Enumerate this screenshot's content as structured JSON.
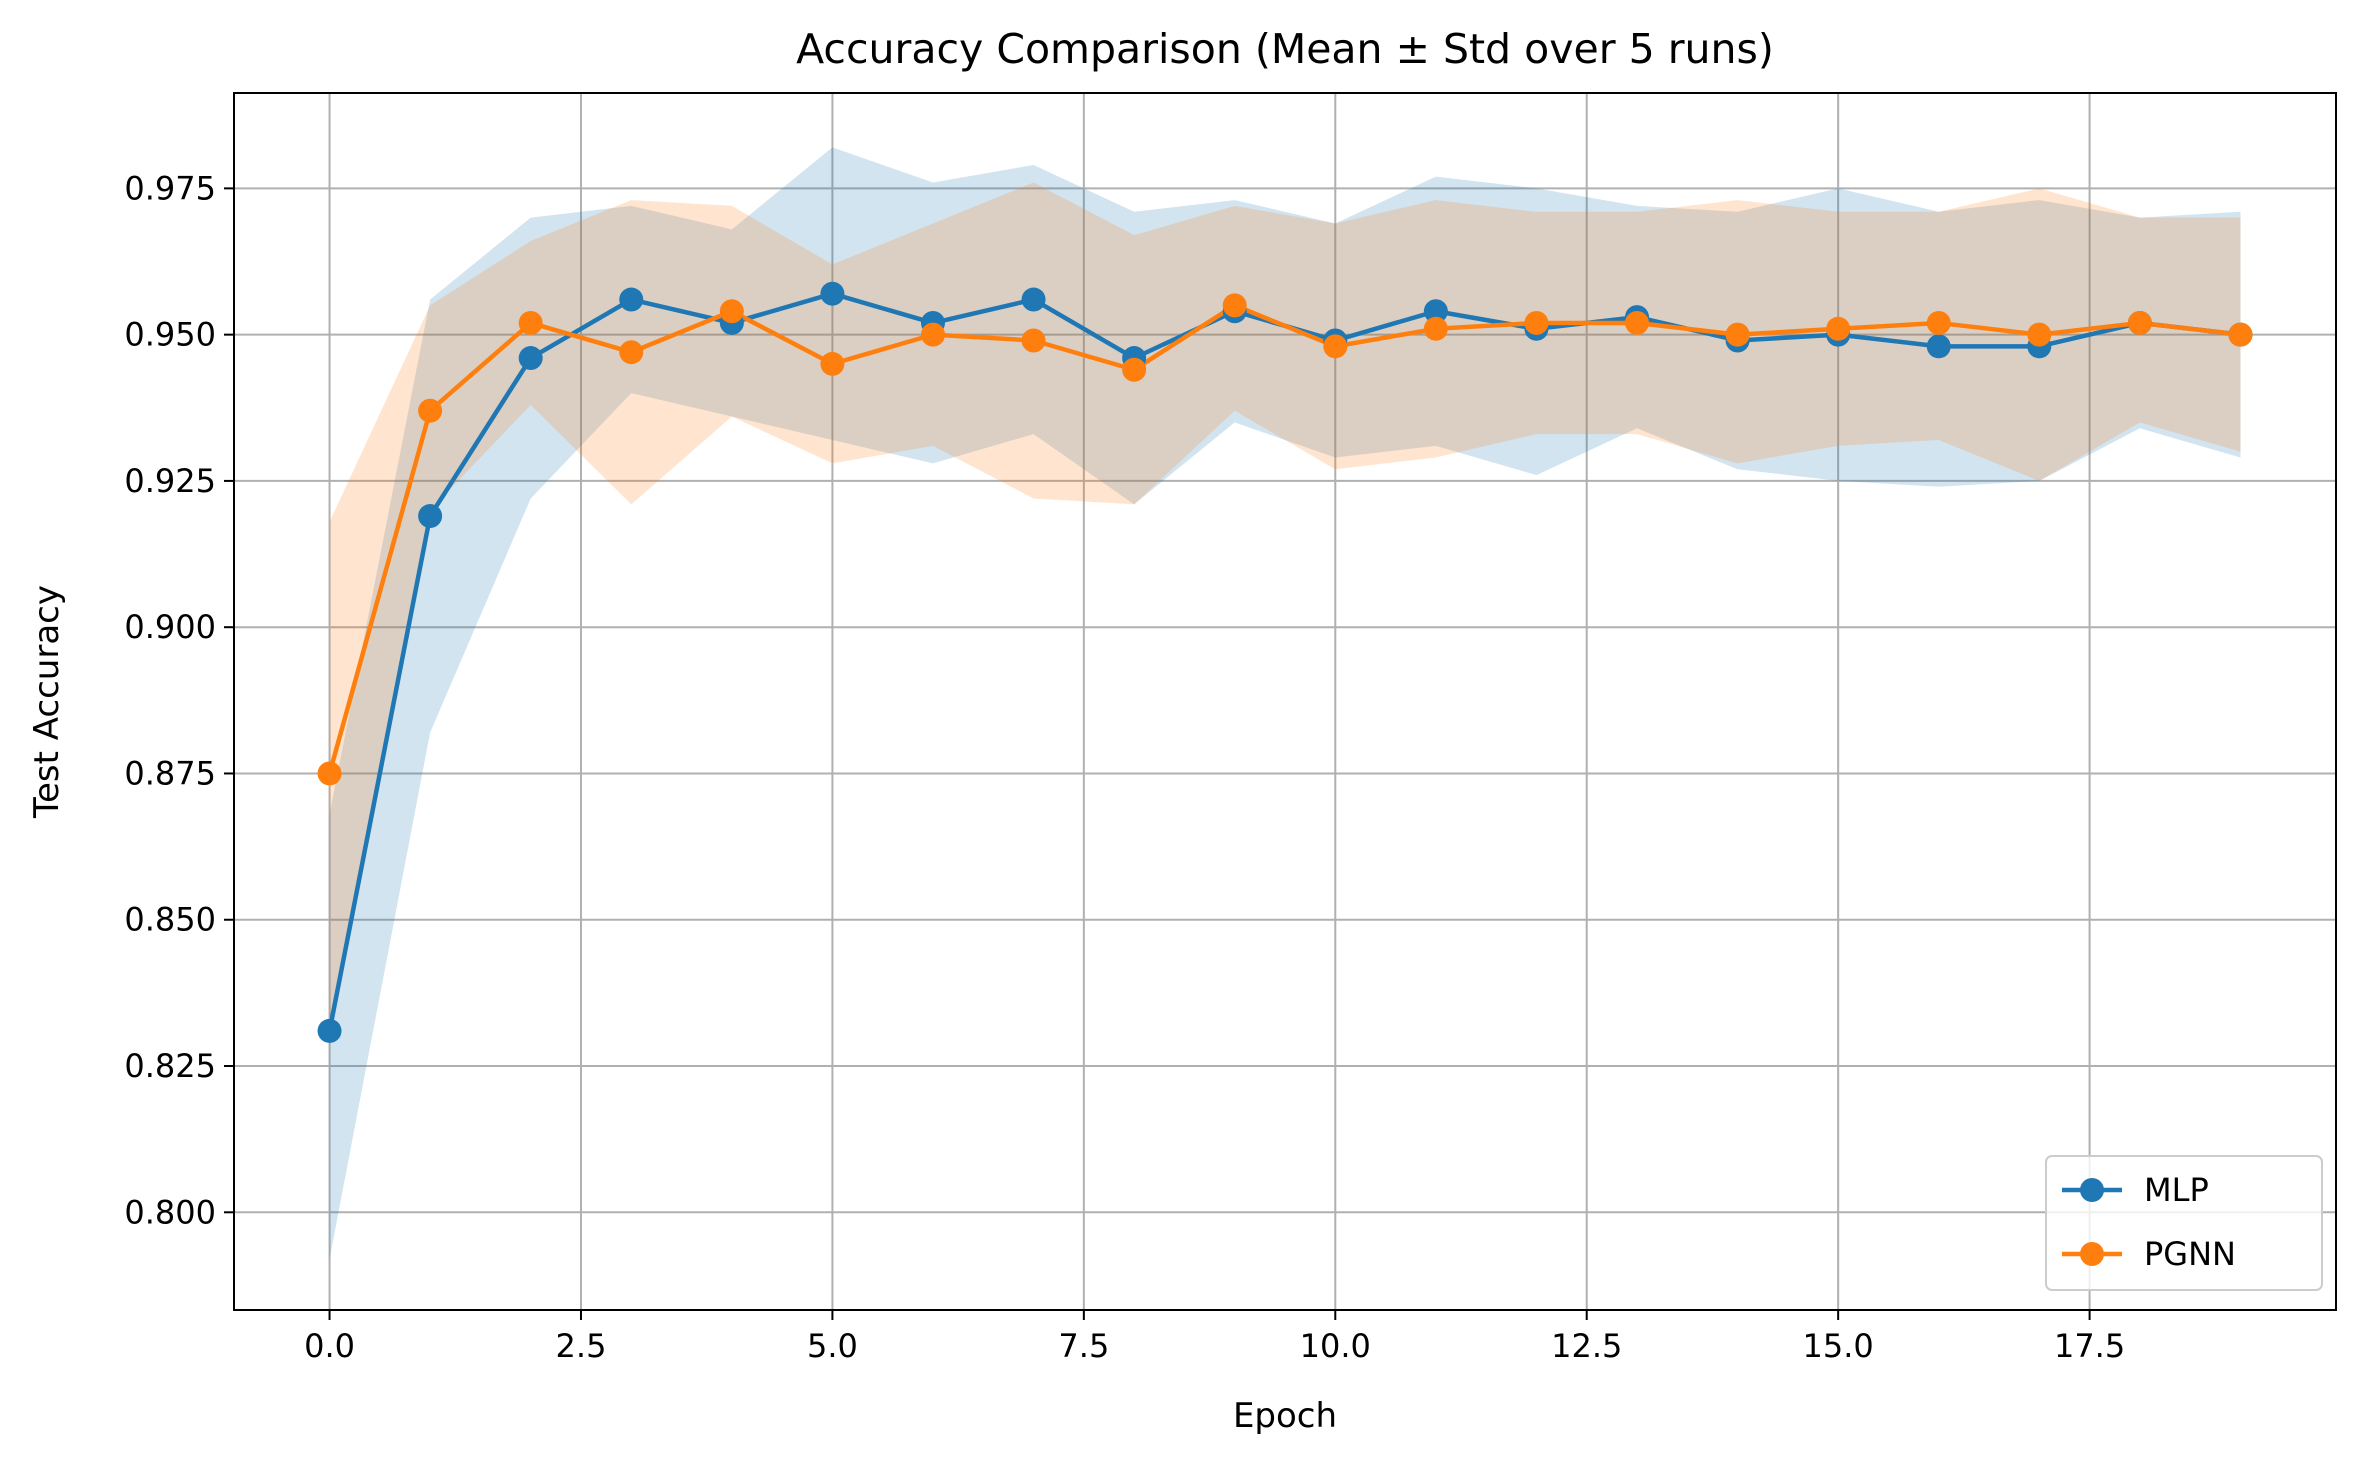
{
  "chart_data": {
    "type": "line",
    "title": "Accuracy Comparison (Mean ± Std over 5 runs)",
    "xlabel": "Epoch",
    "ylabel": "Test Accuracy",
    "xlim": [
      -0.95,
      19.95
    ],
    "ylim": [
      0.7833,
      0.9913
    ],
    "xticks": [
      0.0,
      2.5,
      5.0,
      7.5,
      10.0,
      12.5,
      15.0,
      17.5
    ],
    "xtick_labels": [
      "0.0",
      "2.5",
      "5.0",
      "7.5",
      "10.0",
      "12.5",
      "15.0",
      "17.5"
    ],
    "yticks": [
      0.8,
      0.825,
      0.85,
      0.875,
      0.9,
      0.925,
      0.95,
      0.975
    ],
    "ytick_labels": [
      "0.800",
      "0.825",
      "0.850",
      "0.875",
      "0.900",
      "0.925",
      "0.950",
      "0.975"
    ],
    "grid": true,
    "legend_position": "bottom-right",
    "x": [
      0,
      1,
      2,
      3,
      4,
      5,
      6,
      7,
      8,
      9,
      10,
      11,
      12,
      13,
      14,
      15,
      16,
      17,
      18,
      19
    ],
    "series": [
      {
        "name": "MLP",
        "color": "#1f77b4",
        "band_color": "#1f77b4",
        "marker": "circle",
        "mean": [
          0.831,
          0.919,
          0.946,
          0.956,
          0.952,
          0.957,
          0.952,
          0.956,
          0.946,
          0.954,
          0.949,
          0.954,
          0.951,
          0.953,
          0.949,
          0.95,
          0.948,
          0.948,
          0.952,
          0.95
        ],
        "upper": [
          0.868,
          0.956,
          0.97,
          0.972,
          0.968,
          0.982,
          0.976,
          0.979,
          0.971,
          0.973,
          0.969,
          0.977,
          0.975,
          0.972,
          0.971,
          0.975,
          0.971,
          0.973,
          0.97,
          0.971
        ],
        "lower": [
          0.792,
          0.882,
          0.922,
          0.94,
          0.936,
          0.932,
          0.928,
          0.933,
          0.921,
          0.935,
          0.929,
          0.931,
          0.926,
          0.934,
          0.927,
          0.925,
          0.924,
          0.925,
          0.934,
          0.929
        ]
      },
      {
        "name": "PGNN",
        "color": "#ff7f0e",
        "band_color": "#ff7f0e",
        "marker": "circle",
        "mean": [
          0.875,
          0.937,
          0.952,
          0.947,
          0.954,
          0.945,
          0.95,
          0.949,
          0.944,
          0.955,
          0.948,
          0.951,
          0.952,
          0.952,
          0.95,
          0.951,
          0.952,
          0.95,
          0.952,
          0.95
        ],
        "upper": [
          0.918,
          0.955,
          0.966,
          0.973,
          0.972,
          0.962,
          0.969,
          0.976,
          0.967,
          0.972,
          0.969,
          0.973,
          0.971,
          0.971,
          0.973,
          0.971,
          0.971,
          0.975,
          0.97,
          0.97
        ],
        "lower": [
          0.833,
          0.92,
          0.938,
          0.921,
          0.936,
          0.928,
          0.931,
          0.922,
          0.921,
          0.937,
          0.927,
          0.929,
          0.933,
          0.933,
          0.928,
          0.931,
          0.932,
          0.925,
          0.935,
          0.93
        ]
      }
    ]
  }
}
